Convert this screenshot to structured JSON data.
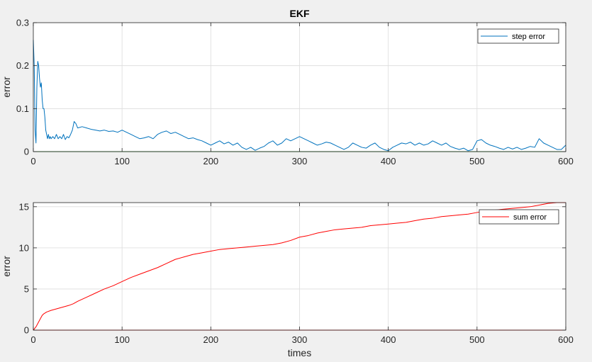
{
  "chart_data": [
    {
      "type": "line",
      "title": "EKF",
      "xlabel": "",
      "ylabel": "error",
      "xlim": [
        0,
        600
      ],
      "ylim": [
        0,
        0.3
      ],
      "xticks": [
        0,
        100,
        200,
        300,
        400,
        500,
        600
      ],
      "yticks": [
        0,
        0.1,
        0.2,
        0.3
      ],
      "xtick_labels": [
        "0",
        "100",
        "200",
        "300",
        "400",
        "500",
        "600"
      ],
      "ytick_labels": [
        "0",
        "0.1",
        "0.2",
        "0.3"
      ],
      "grid": true,
      "legend_position": "top-right",
      "series": [
        {
          "name": "step error",
          "color": "#0072bd",
          "x": [
            0,
            1,
            2,
            3,
            4,
            5,
            6,
            7,
            8,
            9,
            10,
            11,
            12,
            13,
            14,
            15,
            16,
            17,
            18,
            19,
            20,
            22,
            24,
            26,
            28,
            30,
            32,
            34,
            36,
            38,
            40,
            42,
            44,
            46,
            48,
            50,
            55,
            60,
            65,
            70,
            75,
            80,
            85,
            90,
            95,
            100,
            105,
            110,
            115,
            120,
            125,
            130,
            135,
            140,
            145,
            150,
            155,
            160,
            165,
            170,
            175,
            180,
            185,
            190,
            195,
            200,
            205,
            210,
            215,
            220,
            225,
            230,
            235,
            240,
            245,
            250,
            255,
            260,
            265,
            270,
            275,
            280,
            285,
            290,
            295,
            300,
            305,
            310,
            315,
            320,
            325,
            330,
            335,
            340,
            345,
            350,
            355,
            360,
            365,
            370,
            375,
            380,
            385,
            390,
            395,
            400,
            405,
            410,
            415,
            420,
            425,
            430,
            435,
            440,
            445,
            450,
            455,
            460,
            465,
            470,
            475,
            480,
            485,
            490,
            495,
            500,
            505,
            510,
            515,
            520,
            525,
            530,
            535,
            540,
            545,
            550,
            555,
            560,
            565,
            570,
            575,
            580,
            585,
            590,
            595,
            600
          ],
          "y": [
            0.26,
            0.2,
            0.05,
            0.02,
            0.15,
            0.21,
            0.2,
            0.17,
            0.15,
            0.16,
            0.12,
            0.1,
            0.1,
            0.08,
            0.05,
            0.04,
            0.03,
            0.04,
            0.03,
            0.035,
            0.03,
            0.035,
            0.03,
            0.04,
            0.03,
            0.035,
            0.03,
            0.04,
            0.028,
            0.035,
            0.032,
            0.04,
            0.05,
            0.07,
            0.065,
            0.055,
            0.058,
            0.055,
            0.052,
            0.05,
            0.048,
            0.05,
            0.047,
            0.048,
            0.045,
            0.05,
            0.045,
            0.04,
            0.035,
            0.03,
            0.032,
            0.035,
            0.03,
            0.04,
            0.045,
            0.048,
            0.042,
            0.045,
            0.04,
            0.035,
            0.03,
            0.032,
            0.028,
            0.025,
            0.02,
            0.015,
            0.02,
            0.025,
            0.018,
            0.022,
            0.015,
            0.02,
            0.01,
            0.005,
            0.01,
            0.003,
            0.008,
            0.012,
            0.02,
            0.025,
            0.015,
            0.02,
            0.03,
            0.025,
            0.03,
            0.035,
            0.03,
            0.025,
            0.02,
            0.015,
            0.018,
            0.022,
            0.02,
            0.015,
            0.01,
            0.005,
            0.01,
            0.02,
            0.015,
            0.01,
            0.008,
            0.015,
            0.02,
            0.01,
            0.005,
            0.002,
            0.01,
            0.015,
            0.02,
            0.018,
            0.022,
            0.015,
            0.02,
            0.015,
            0.018,
            0.025,
            0.02,
            0.015,
            0.02,
            0.012,
            0.008,
            0.005,
            0.008,
            0.002,
            0.005,
            0.025,
            0.028,
            0.02,
            0.015,
            0.012,
            0.008,
            0.005,
            0.01,
            0.006,
            0.01,
            0.005,
            0.008,
            0.012,
            0.01,
            0.03,
            0.02,
            0.015,
            0.01,
            0.005,
            0.005,
            0.015
          ]
        },
        {
          "name": "",
          "color": "#008000",
          "x": [
            0,
            600
          ],
          "y": [
            0,
            0
          ]
        }
      ]
    },
    {
      "type": "line",
      "title": "",
      "xlabel": "times",
      "ylabel": "error",
      "xlim": [
        0,
        600
      ],
      "ylim": [
        0,
        15.5
      ],
      "xticks": [
        0,
        100,
        200,
        300,
        400,
        500,
        600
      ],
      "yticks": [
        0,
        5,
        10,
        15
      ],
      "xtick_labels": [
        "0",
        "100",
        "200",
        "300",
        "400",
        "500",
        "600"
      ],
      "ytick_labels": [
        "0",
        "5",
        "10",
        "15"
      ],
      "grid": true,
      "legend_position": "top-right",
      "series": [
        {
          "name": "sum error",
          "color": "#ff0000",
          "x": [
            0,
            3,
            5,
            8,
            10,
            12,
            15,
            20,
            30,
            40,
            45,
            50,
            60,
            70,
            80,
            90,
            100,
            110,
            120,
            130,
            140,
            150,
            160,
            170,
            180,
            190,
            200,
            210,
            220,
            230,
            240,
            250,
            260,
            270,
            280,
            290,
            300,
            310,
            320,
            330,
            340,
            350,
            360,
            370,
            380,
            390,
            400,
            410,
            420,
            430,
            440,
            450,
            460,
            470,
            480,
            490,
            500,
            510,
            520,
            530,
            540,
            550,
            560,
            570,
            580,
            590,
            600
          ],
          "y": [
            0,
            0.4,
            0.8,
            1.4,
            1.8,
            2.0,
            2.2,
            2.4,
            2.7,
            3.0,
            3.2,
            3.5,
            4.0,
            4.5,
            5.0,
            5.4,
            5.9,
            6.4,
            6.8,
            7.2,
            7.6,
            8.1,
            8.6,
            8.9,
            9.2,
            9.4,
            9.6,
            9.8,
            9.9,
            10.0,
            10.1,
            10.2,
            10.3,
            10.4,
            10.6,
            10.9,
            11.3,
            11.5,
            11.8,
            12.0,
            12.2,
            12.3,
            12.4,
            12.5,
            12.7,
            12.8,
            12.9,
            13.0,
            13.1,
            13.3,
            13.5,
            13.6,
            13.8,
            13.9,
            14.0,
            14.1,
            14.3,
            14.5,
            14.6,
            14.7,
            14.8,
            14.9,
            15.0,
            15.2,
            15.4,
            15.5,
            15.5
          ]
        },
        {
          "name": "",
          "color": "#ff0000",
          "x": [
            0,
            600
          ],
          "y": [
            0,
            0
          ]
        }
      ]
    }
  ]
}
